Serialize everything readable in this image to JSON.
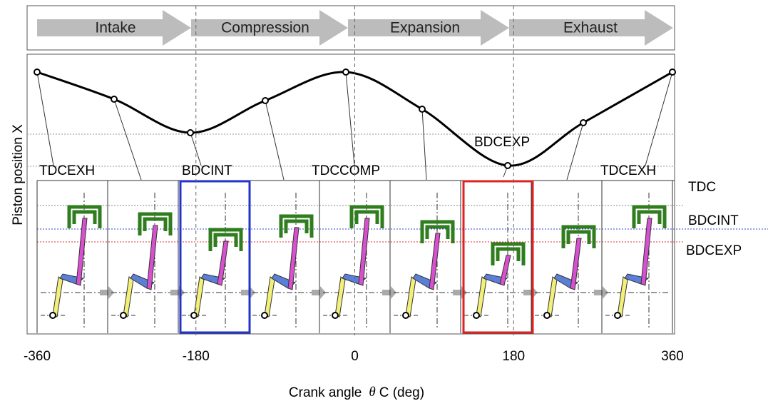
{
  "phases": [
    "Intake",
    "Compression",
    "Expansion",
    "Exhaust"
  ],
  "point_labels": [
    "TDCEXH",
    "BDCINT",
    "TDCCOMP",
    "BDCEXP",
    "TDCEXH"
  ],
  "reference_labels": [
    "TDC",
    "BDCINT",
    "BDCEXP"
  ],
  "axis": {
    "y_label": "Piston position X",
    "x_label_prefix": "Crank angle",
    "theta": "θ",
    "x_label_suffix": "C (deg)",
    "xlim": [
      -360,
      360
    ],
    "xticks": [
      -360,
      -180,
      0,
      180,
      360
    ]
  }
}
